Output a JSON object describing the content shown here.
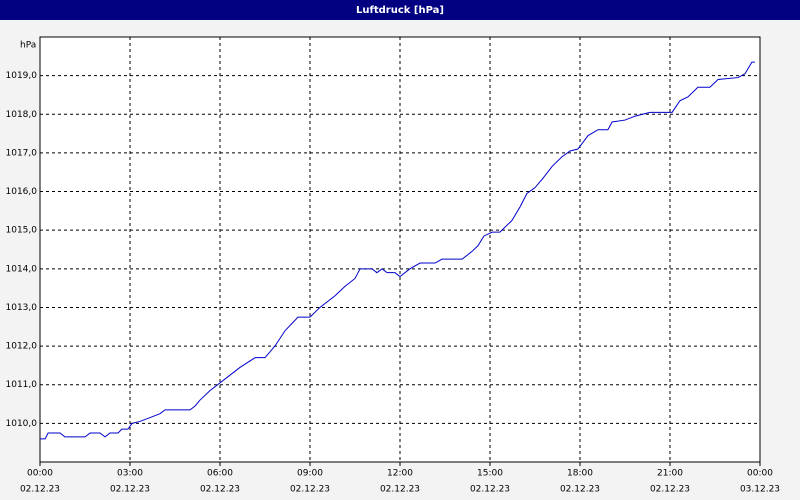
{
  "chart_data": {
    "type": "line",
    "title": "Luftdruck [hPa]",
    "y_label": "hPa",
    "x": [
      0,
      0.17,
      0.27,
      0.67,
      0.83,
      1.5,
      1.67,
      2,
      2.17,
      2.33,
      2.6,
      2.73,
      2.93,
      3.07,
      3.33,
      3.67,
      4,
      4.17,
      5,
      5.17,
      5.33,
      5.67,
      6.17,
      6.67,
      7.17,
      7.5,
      7.83,
      8.17,
      8.6,
      9,
      9.33,
      9.83,
      10.17,
      10.5,
      10.67,
      11.07,
      11.23,
      11.4,
      11.57,
      11.83,
      12,
      12.33,
      12.67,
      13.17,
      13.4,
      14.07,
      14.4,
      14.6,
      14.8,
      15.07,
      15.33,
      15.73,
      16,
      16.23,
      16.5,
      16.77,
      17.07,
      17.4,
      17.67,
      17.93,
      18.27,
      18.6,
      18.93,
      19.07,
      19.5,
      19.83,
      20.33,
      21.07,
      21.33,
      21.6,
      21.93,
      22.33,
      22.6,
      23.27,
      23.5,
      23.73,
      23.83
    ],
    "series": [
      {
        "color": "#0000cc",
        "values": [
          1009.6,
          1009.6,
          1009.75,
          1009.75,
          1009.65,
          1009.65,
          1009.75,
          1009.75,
          1009.65,
          1009.75,
          1009.75,
          1009.85,
          1009.85,
          1010.0,
          1010.05,
          1010.15,
          1010.25,
          1010.35,
          1010.35,
          1010.45,
          1010.6,
          1010.85,
          1011.15,
          1011.45,
          1011.7,
          1011.7,
          1012.0,
          1012.4,
          1012.75,
          1012.75,
          1013.0,
          1013.3,
          1013.55,
          1013.75,
          1014.0,
          1014.0,
          1013.9,
          1014.0,
          1013.9,
          1013.9,
          1013.8,
          1014.0,
          1014.15,
          1014.15,
          1014.25,
          1014.25,
          1014.45,
          1014.6,
          1014.85,
          1014.95,
          1014.95,
          1015.25,
          1015.6,
          1015.95,
          1016.1,
          1016.35,
          1016.65,
          1016.9,
          1017.05,
          1017.1,
          1017.45,
          1017.6,
          1017.6,
          1017.8,
          1017.85,
          1017.95,
          1018.05,
          1018.05,
          1018.35,
          1018.45,
          1018.7,
          1018.7,
          1018.9,
          1018.95,
          1019.05,
          1019.35,
          1019.35
        ]
      }
    ],
    "xlim": [
      0,
      24
    ],
    "xticks": [
      {
        "value": 0,
        "label": "00:00",
        "sublabel": "02.12.23"
      },
      {
        "value": 3,
        "label": "03:00",
        "sublabel": "02.12.23"
      },
      {
        "value": 6,
        "label": "06:00",
        "sublabel": "02.12.23"
      },
      {
        "value": 9,
        "label": "09:00",
        "sublabel": "02.12.23"
      },
      {
        "value": 12,
        "label": "12:00",
        "sublabel": "02.12.23"
      },
      {
        "value": 15,
        "label": "15:00",
        "sublabel": "02.12.23"
      },
      {
        "value": 18,
        "label": "18:00",
        "sublabel": "02.12.23"
      },
      {
        "value": 21,
        "label": "21:00",
        "sublabel": "02.12.23"
      },
      {
        "value": 24,
        "label": "00:00",
        "sublabel": "03.12.23"
      }
    ],
    "ylim": [
      1009,
      1020
    ],
    "yticks": [
      {
        "value": 1010,
        "label": "1010,0"
      },
      {
        "value": 1011,
        "label": "1011,0"
      },
      {
        "value": 1012,
        "label": "1012,0"
      },
      {
        "value": 1013,
        "label": "1013,0"
      },
      {
        "value": 1014,
        "label": "1014,0"
      },
      {
        "value": 1015,
        "label": "1015,0"
      },
      {
        "value": 1016,
        "label": "1016,0"
      },
      {
        "value": 1017,
        "label": "1017,0"
      },
      {
        "value": 1018,
        "label": "1018,0"
      },
      {
        "value": 1019,
        "label": "1019,0"
      }
    ],
    "grid": true
  }
}
